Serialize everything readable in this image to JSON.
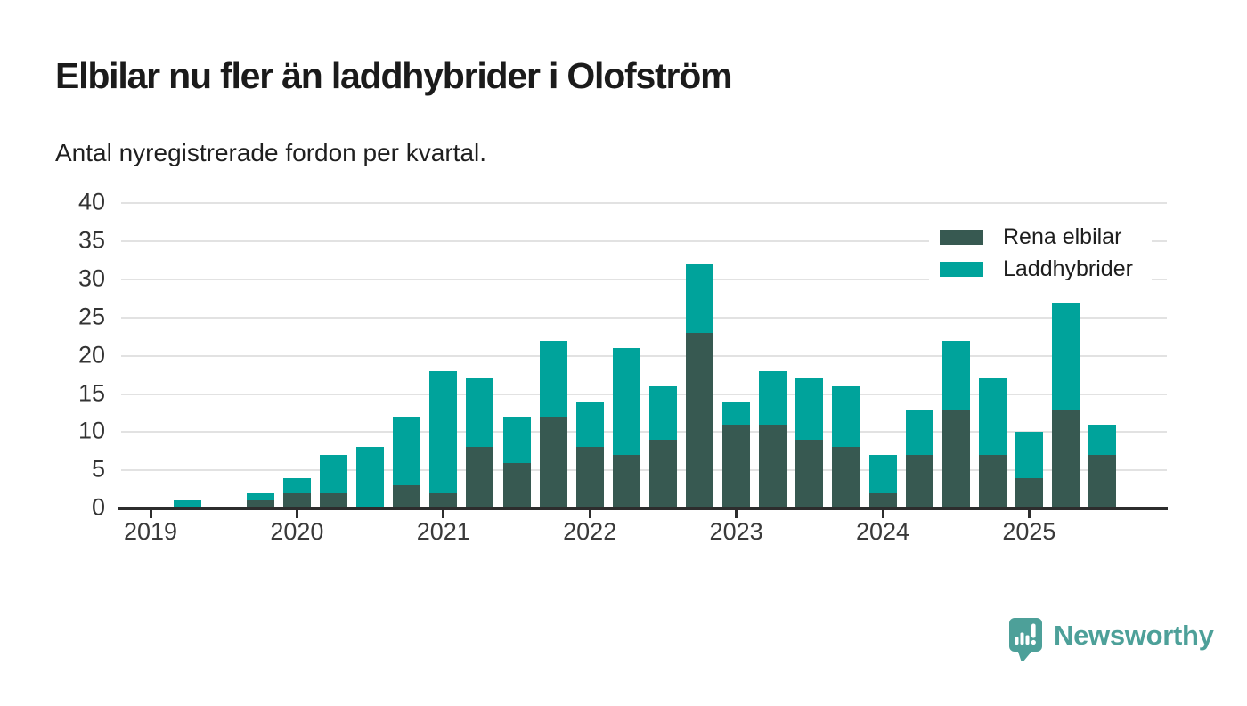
{
  "header": {
    "title": "Elbilar nu fler än laddhybrider i Olofström",
    "subtitle": "Antal nyregistrerade fordon per kvartal."
  },
  "footer": {
    "brand": "Newsworthy",
    "brand_color": "#4da099"
  },
  "chart_data": {
    "type": "bar",
    "stacked": true,
    "title": "Elbilar nu fler än laddhybrider i Olofström",
    "subtitle": "Antal nyregistrerade fordon per kvartal.",
    "xlabel": "",
    "ylabel": "",
    "ylim": [
      0,
      40
    ],
    "y_ticks": [
      0,
      5,
      10,
      15,
      20,
      25,
      30,
      35,
      40
    ],
    "grid": "horizontal",
    "legend_position": "top-right",
    "categories": [
      "2019 Q1",
      "2019 Q2",
      "2019 Q3",
      "2019 Q4",
      "2020 Q1",
      "2020 Q2",
      "2020 Q3",
      "2020 Q4",
      "2021 Q1",
      "2021 Q2",
      "2021 Q3",
      "2021 Q4",
      "2022 Q1",
      "2022 Q2",
      "2022 Q3",
      "2022 Q4",
      "2023 Q1",
      "2023 Q2",
      "2023 Q3",
      "2023 Q4",
      "2024 Q1",
      "2024 Q2",
      "2024 Q3",
      "2024 Q4",
      "2025 Q1",
      "2025 Q2",
      "2025 Q3"
    ],
    "year_labels": [
      "2019",
      "2020",
      "2021",
      "2022",
      "2023",
      "2024",
      "2025"
    ],
    "series": [
      {
        "name": "Rena elbilar",
        "color": "#375951",
        "values": [
          0,
          0,
          0,
          1,
          2,
          2,
          0,
          3,
          2,
          8,
          6,
          12,
          8,
          7,
          9,
          23,
          11,
          11,
          9,
          8,
          2,
          7,
          13,
          7,
          4,
          13,
          7
        ]
      },
      {
        "name": "Laddhybrider",
        "color": "#00a39b",
        "values": [
          0,
          1,
          0,
          1,
          2,
          5,
          8,
          9,
          16,
          9,
          6,
          10,
          6,
          14,
          7,
          9,
          3,
          7,
          8,
          8,
          5,
          6,
          9,
          10,
          6,
          14,
          4
        ]
      }
    ],
    "totals": [
      0,
      1,
      0,
      2,
      4,
      7,
      8,
      12,
      18,
      17,
      12,
      22,
      14,
      21,
      16,
      32,
      14,
      18,
      17,
      16,
      7,
      13,
      22,
      17,
      10,
      27,
      11
    ]
  }
}
